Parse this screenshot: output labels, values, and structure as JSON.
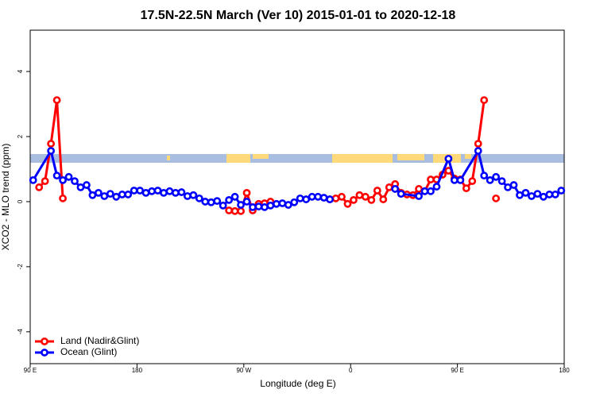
{
  "chart_data": {
    "type": "line",
    "title": "17.5N-22.5N March (Ver 10)   2015-01-01 to 2020-12-18",
    "xlabel": "Longitude (deg E)",
    "ylabel": "XCO2 - MLO trend (ppm)",
    "xlim": [
      90,
      540
    ],
    "ylim": [
      -4.98,
      5.27
    ],
    "xticks": [
      {
        "value": 90,
        "label": "90 E"
      },
      180,
      {
        "value": 270,
        "label": "90 W"
      },
      {
        "value": 360,
        "label": "0"
      },
      {
        "value": 450,
        "label": "90 E"
      },
      {
        "value": 540,
        "label": "180"
      }
    ],
    "yticks": [
      -4,
      -2,
      0,
      2,
      4
    ],
    "legend": "bottom-left",
    "series": [
      {
        "name": "Land (Nadir&Glint)",
        "color": "#ff0000",
        "x": [
          97.5,
          102.5,
          107.5,
          112.5,
          117.5,
          127.5,
          257.5,
          262.5,
          267.5,
          272.5,
          277.5,
          282.5,
          287.5,
          292.5,
          297.5,
          342.5,
          347.5,
          352.5,
          357.5,
          362.5,
          367.5,
          372.5,
          377.5,
          382.5,
          387.5,
          392.5,
          397.5,
          402.5,
          407.5,
          412.5,
          417.5,
          422.5,
          427.5,
          432.5,
          437.5,
          442.5,
          447.5,
          452.5,
          457.5,
          462.5,
          467.5,
          472.5,
          477.5,
          482.5
        ],
        "values": [
          0.44,
          0.63,
          1.78,
          3.12,
          0.1,
          null,
          -0.27,
          -0.29,
          -0.29,
          0.27,
          -0.27,
          -0.07,
          -0.05,
          0.0,
          null,
          0.07,
          0.1,
          0.15,
          -0.07,
          0.05,
          0.2,
          0.15,
          0.05,
          0.34,
          0.07,
          0.44,
          0.54,
          0.27,
          0.22,
          0.2,
          0.39,
          0.32,
          0.68,
          0.68,
          0.83,
          0.95,
          0.71,
          0.68,
          0.41,
          0.63,
          1.78,
          3.12,
          null,
          0.1
        ]
      },
      {
        "name": "Ocean (Glint)",
        "color": "#0000ff",
        "x": [
          92.5,
          107.5,
          112.5,
          117.5,
          122.5,
          127.5,
          132.5,
          137.5,
          142.5,
          147.5,
          152.5,
          157.5,
          162.5,
          167.5,
          172.5,
          177.5,
          182.5,
          187.5,
          192.5,
          197.5,
          202.5,
          207.5,
          212.5,
          217.5,
          222.5,
          227.5,
          232.5,
          237.5,
          242.5,
          247.5,
          252.5,
          257.5,
          262.5,
          267.5,
          272.5,
          277.5,
          282.5,
          287.5,
          292.5,
          297.5,
          302.5,
          307.5,
          312.5,
          317.5,
          322.5,
          327.5,
          332.5,
          337.5,
          342.5,
          347.5,
          397.5,
          402.5,
          417.5,
          422.5,
          427.5,
          432.5,
          442.5,
          447.5,
          452.5,
          467.5,
          472.5,
          477.5,
          482.5,
          487.5,
          492.5,
          497.5,
          502.5,
          507.5,
          512.5,
          517.5,
          522.5,
          527.5,
          532.5,
          537.5
        ],
        "values": [
          0.66,
          1.56,
          0.8,
          0.66,
          0.76,
          0.63,
          0.44,
          0.51,
          0.2,
          0.27,
          0.17,
          0.24,
          0.15,
          0.22,
          0.22,
          0.34,
          0.34,
          0.27,
          0.32,
          0.34,
          0.27,
          0.32,
          0.27,
          0.29,
          0.17,
          0.2,
          0.1,
          0.0,
          -0.02,
          0.02,
          -0.12,
          0.05,
          0.15,
          -0.1,
          0.0,
          -0.17,
          -0.15,
          -0.17,
          -0.12,
          -0.07,
          -0.05,
          -0.1,
          -0.02,
          0.1,
          0.07,
          0.15,
          0.15,
          0.12,
          0.07,
          null,
          0.39,
          0.24,
          0.17,
          0.32,
          0.32,
          0.46,
          1.32,
          0.66,
          0.66,
          1.56,
          0.8,
          0.66,
          0.76,
          0.63,
          0.44,
          0.51,
          0.2,
          0.27,
          0.17,
          0.24,
          0.15,
          0.22,
          0.22,
          0.34
        ]
      }
    ]
  }
}
